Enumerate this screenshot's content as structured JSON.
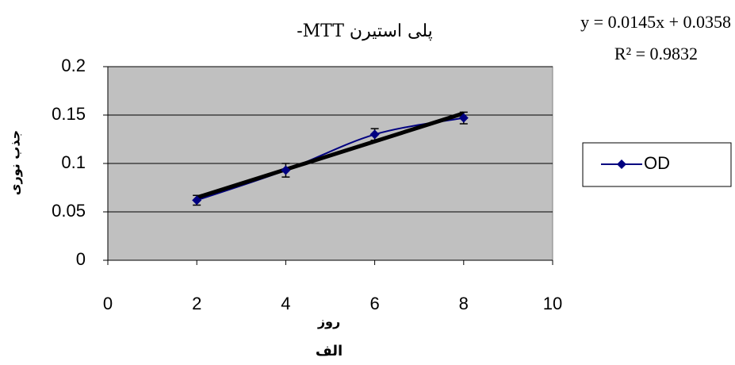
{
  "chart_data": {
    "type": "line",
    "title": "پلی استیرن MTT-",
    "equation": "y = 0.0145x + 0.0358",
    "r_squared": "R² = 0.9832",
    "x_label": "روز",
    "y_label": "جذب نوری",
    "caption": "الف",
    "x": [
      2,
      4,
      6,
      8
    ],
    "series": [
      {
        "name": "OD",
        "color": "#000080",
        "values": [
          0.062,
          0.093,
          0.13,
          0.147
        ],
        "errors": [
          0.005,
          0.007,
          0.006,
          0.006
        ]
      }
    ],
    "trendline": {
      "x": [
        2,
        8
      ],
      "values": [
        0.0648,
        0.1518
      ],
      "color": "#000000"
    },
    "xlim": [
      0,
      10
    ],
    "xticks": [
      0,
      2,
      4,
      6,
      8,
      10
    ],
    "ylim": [
      0,
      0.2
    ],
    "yticks": [
      0,
      0.05,
      0.1,
      0.15,
      0.2
    ],
    "grid": true,
    "legend": "right",
    "plot_background": "#c0c0c0"
  }
}
